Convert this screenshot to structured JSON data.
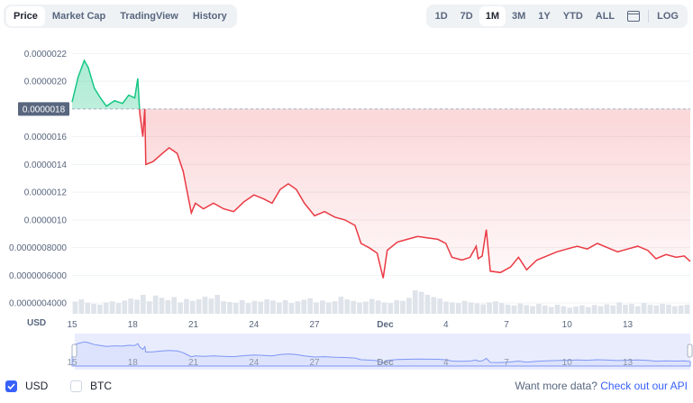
{
  "tabs": [
    "Price",
    "Market Cap",
    "TradingView",
    "History"
  ],
  "active_tab": "Price",
  "ranges": [
    "1D",
    "7D",
    "1M",
    "3M",
    "1Y",
    "YTD",
    "ALL"
  ],
  "active_range": "1M",
  "log_label": "LOG",
  "currency_label": "USD",
  "options": {
    "usd": "USD",
    "btc": "BTC"
  },
  "api_text": "Want more data?",
  "api_link": "Check out our API",
  "colors": {
    "up": "#16c784",
    "down": "#ea3943",
    "accent": "#3861fb"
  },
  "chart_data": {
    "type": "line",
    "y_ticks": [
      "0.0000022",
      "0.0000020",
      "0.0000018",
      "0.0000016",
      "0.0000014",
      "0.0000012",
      "0.0000010",
      "0.0000008000",
      "0.0000006000",
      "0.0000004000"
    ],
    "y_tick_values": [
      2.2e-06,
      2e-06,
      1.8e-06,
      1.6e-06,
      1.4e-06,
      1.2e-06,
      1e-06,
      8e-07,
      6e-07,
      4e-07
    ],
    "ylim": [
      3.62e-07,
      2.3e-06
    ],
    "x_ticks": [
      "15",
      "18",
      "21",
      "24",
      "27",
      "Dec",
      "4",
      "7",
      "10",
      "13"
    ],
    "x_tick_positions": [
      0.5,
      3.5,
      6.5,
      9.5,
      12.5,
      16,
      19,
      22,
      25,
      28
    ],
    "xlim": [
      0.5,
      31.1
    ],
    "reference_label": "0.0000018",
    "reference_value": 1.8e-06,
    "points": [
      [
        0.5,
        1.85e-06
      ],
      [
        0.8,
        2.03e-06
      ],
      [
        1.1,
        2.15e-06
      ],
      [
        1.3,
        2.1e-06
      ],
      [
        1.6,
        1.95e-06
      ],
      [
        1.9,
        1.88e-06
      ],
      [
        2.2,
        1.82e-06
      ],
      [
        2.6,
        1.86e-06
      ],
      [
        3.0,
        1.84e-06
      ],
      [
        3.3,
        1.9e-06
      ],
      [
        3.6,
        1.88e-06
      ],
      [
        3.75,
        2.02e-06
      ],
      [
        3.85,
        1.77e-06
      ],
      [
        4.0,
        1.6e-06
      ],
      [
        4.1,
        1.8e-06
      ],
      [
        4.15,
        1.4e-06
      ],
      [
        4.5,
        1.42e-06
      ],
      [
        4.9,
        1.47e-06
      ],
      [
        5.3,
        1.52e-06
      ],
      [
        5.7,
        1.48e-06
      ],
      [
        6.0,
        1.35e-06
      ],
      [
        6.2,
        1.2e-06
      ],
      [
        6.4,
        1.05e-06
      ],
      [
        6.6,
        1.12e-06
      ],
      [
        7.0,
        1.08e-06
      ],
      [
        7.5,
        1.12e-06
      ],
      [
        8.0,
        1.08e-06
      ],
      [
        8.5,
        1.06e-06
      ],
      [
        9.0,
        1.13e-06
      ],
      [
        9.5,
        1.18e-06
      ],
      [
        10.0,
        1.15e-06
      ],
      [
        10.4,
        1.12e-06
      ],
      [
        10.8,
        1.22e-06
      ],
      [
        11.2,
        1.26e-06
      ],
      [
        11.6,
        1.22e-06
      ],
      [
        12.0,
        1.12e-06
      ],
      [
        12.5,
        1.03e-06
      ],
      [
        13.0,
        1.06e-06
      ],
      [
        13.5,
        1.02e-06
      ],
      [
        14.0,
        1e-06
      ],
      [
        14.5,
        9.6e-07
      ],
      [
        14.8,
        8.3e-07
      ],
      [
        15.2,
        8e-07
      ],
      [
        15.6,
        7.6e-07
      ],
      [
        15.9,
        5.8e-07
      ],
      [
        16.1,
        7.8e-07
      ],
      [
        16.6,
        8.4e-07
      ],
      [
        17.1,
        8.6e-07
      ],
      [
        17.6,
        8.8e-07
      ],
      [
        18.1,
        8.7e-07
      ],
      [
        18.6,
        8.6e-07
      ],
      [
        19.0,
        8.3e-07
      ],
      [
        19.3,
        7.3e-07
      ],
      [
        19.8,
        7.1e-07
      ],
      [
        20.2,
        7.3e-07
      ],
      [
        20.5,
        8.1e-07
      ],
      [
        20.6,
        7.2e-07
      ],
      [
        20.8,
        7.4e-07
      ],
      [
        21.0,
        9.3e-07
      ],
      [
        21.2,
        6.3e-07
      ],
      [
        21.7,
        6.2e-07
      ],
      [
        22.2,
        6.6e-07
      ],
      [
        22.6,
        7.3e-07
      ],
      [
        23.0,
        6.4e-07
      ],
      [
        23.5,
        7.1e-07
      ],
      [
        24.0,
        7.4e-07
      ],
      [
        24.5,
        7.7e-07
      ],
      [
        25.0,
        7.9e-07
      ],
      [
        25.5,
        8.1e-07
      ],
      [
        26.0,
        7.9e-07
      ],
      [
        26.5,
        8.3e-07
      ],
      [
        27.0,
        8e-07
      ],
      [
        27.5,
        7.7e-07
      ],
      [
        28.0,
        7.9e-07
      ],
      [
        28.5,
        8.1e-07
      ],
      [
        29.0,
        7.8e-07
      ],
      [
        29.4,
        7.2e-07
      ],
      [
        29.9,
        7.5e-07
      ],
      [
        30.4,
        7.3e-07
      ],
      [
        30.8,
        7.4e-07
      ],
      [
        31.1,
        7e-07
      ]
    ],
    "volume": [
      0.32,
      0.38,
      0.29,
      0.26,
      0.24,
      0.3,
      0.33,
      0.28,
      0.35,
      0.4,
      0.37,
      0.5,
      0.33,
      0.48,
      0.42,
      0.36,
      0.44,
      0.3,
      0.39,
      0.34,
      0.38,
      0.45,
      0.4,
      0.5,
      0.33,
      0.31,
      0.29,
      0.36,
      0.28,
      0.34,
      0.32,
      0.38,
      0.35,
      0.3,
      0.36,
      0.28,
      0.33,
      0.37,
      0.41,
      0.3,
      0.35,
      0.3,
      0.33,
      0.45,
      0.38,
      0.34,
      0.3,
      0.32,
      0.39,
      0.35,
      0.3,
      0.28,
      0.36,
      0.34,
      0.42,
      0.62,
      0.58,
      0.5,
      0.44,
      0.4,
      0.32,
      0.3,
      0.28,
      0.34,
      0.3,
      0.27,
      0.25,
      0.3,
      0.33,
      0.28,
      0.24,
      0.22,
      0.27,
      0.23,
      0.2,
      0.26,
      0.22,
      0.18,
      0.24,
      0.2,
      0.16,
      0.19,
      0.22,
      0.18,
      0.23,
      0.2,
      0.25,
      0.22,
      0.3,
      0.24,
      0.26,
      0.2,
      0.28,
      0.24,
      0.22,
      0.26,
      0.24,
      0.2,
      0.22,
      0.24
    ]
  }
}
